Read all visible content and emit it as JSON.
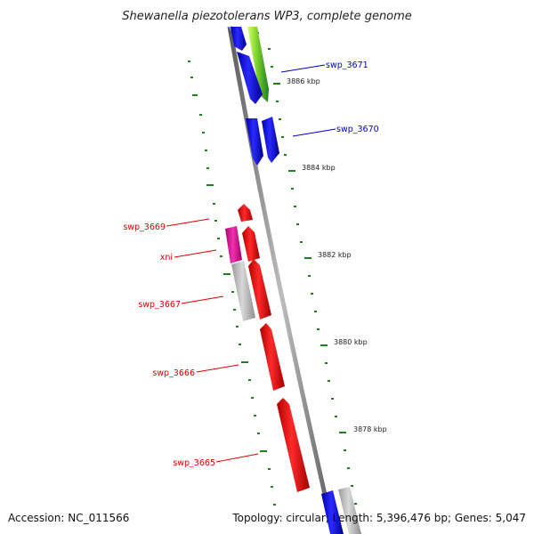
{
  "title": "Shewanella piezotolerans WP3, complete genome",
  "footer": {
    "accession": "Accession: NC_011566",
    "summary": "Topology: circular; Length: 5,396,476 bp; Genes: 5,047"
  },
  "ruler_labels": [
    "3886 kbp",
    "3884 kbp",
    "3882 kbp",
    "3880 kbp",
    "3878 kbp"
  ],
  "gene_labels": [
    {
      "text": "swp_3671",
      "color": "#0000cc"
    },
    {
      "text": "swp_3670",
      "color": "#0000cc"
    },
    {
      "text": "swp_3669",
      "color": "#dd0000"
    },
    {
      "text": "xni",
      "color": "#dd0000"
    },
    {
      "text": "swp_3667",
      "color": "#dd0000"
    },
    {
      "text": "swp_3666",
      "color": "#dd0000"
    },
    {
      "text": "swp_3665",
      "color": "#dd0000"
    }
  ],
  "colors": {
    "backbone": "#8a8a8a",
    "forward_gene": "#1515e0",
    "reverse_gene": "#ee1111",
    "pink_gene": "#e0189a",
    "gray_gene": "#b8b8b8",
    "green_gene": "#5fc21f",
    "tick_green": "#1f7f1f"
  }
}
